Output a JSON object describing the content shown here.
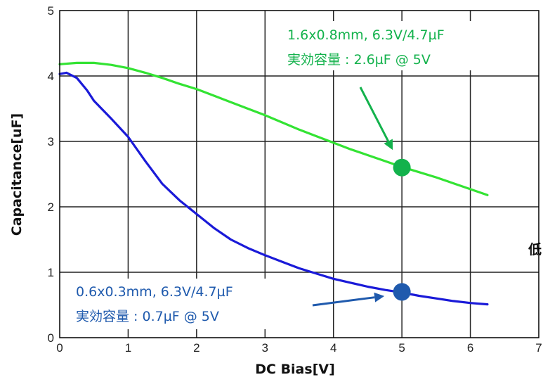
{
  "chart_data": {
    "type": "line",
    "xlabel": "DC Bias[V]",
    "ylabel": "Capacitance[uF]",
    "xlim": [
      0,
      7
    ],
    "ylim": [
      0,
      5
    ],
    "x_ticks": [
      "0",
      "1",
      "2",
      "3",
      "4",
      "5",
      "6",
      "7"
    ],
    "y_ticks": [
      "0",
      "1",
      "2",
      "3",
      "4",
      "5"
    ],
    "grid": true,
    "series": [
      {
        "color": "#33e333",
        "x": [
          0.0,
          0.25,
          0.5,
          0.75,
          1.0,
          1.25,
          1.5,
          1.75,
          2.0,
          2.25,
          2.5,
          2.75,
          3.0,
          3.25,
          3.5,
          3.75,
          4.0,
          4.25,
          4.5,
          4.75,
          5.0,
          5.25,
          5.5,
          5.75,
          6.0,
          6.25
        ],
        "values": [
          4.18,
          4.2,
          4.2,
          4.17,
          4.12,
          4.05,
          3.97,
          3.88,
          3.8,
          3.7,
          3.6,
          3.5,
          3.4,
          3.29,
          3.18,
          3.08,
          2.98,
          2.88,
          2.79,
          2.7,
          2.61,
          2.53,
          2.45,
          2.36,
          2.27,
          2.18
        ]
      },
      {
        "color": "#1a1ad8",
        "x": [
          0.0,
          0.1,
          0.25,
          0.4,
          0.5,
          0.75,
          1.0,
          1.25,
          1.5,
          1.75,
          2.0,
          2.25,
          2.5,
          2.75,
          3.0,
          3.25,
          3.5,
          3.75,
          4.0,
          4.25,
          4.5,
          4.75,
          5.0,
          5.25,
          5.5,
          5.75,
          6.0,
          6.25
        ],
        "values": [
          4.03,
          4.05,
          3.97,
          3.78,
          3.62,
          3.35,
          3.07,
          2.7,
          2.35,
          2.1,
          1.89,
          1.68,
          1.5,
          1.37,
          1.26,
          1.16,
          1.06,
          0.98,
          0.9,
          0.84,
          0.78,
          0.73,
          0.69,
          0.64,
          0.6,
          0.56,
          0.53,
          0.51
        ]
      }
    ],
    "markers": [
      {
        "x": 5,
        "y": 2.6,
        "color": "#13b24c"
      },
      {
        "x": 5,
        "y": 0.7,
        "color": "#1f5aad"
      }
    ],
    "annotations": [
      {
        "line1": "1.6x0.8mm, 6.3V/4.7µF",
        "line2": "実効容量 : 2.6µF @ 5V",
        "color": "#13b24c"
      },
      {
        "line1": "0.6x0.3mm, 6.3V/4.7µF",
        "line2": "実効容量 : 0.7µF @ 5V",
        "color": "#1f5aad"
      }
    ],
    "cut_text": "低"
  }
}
